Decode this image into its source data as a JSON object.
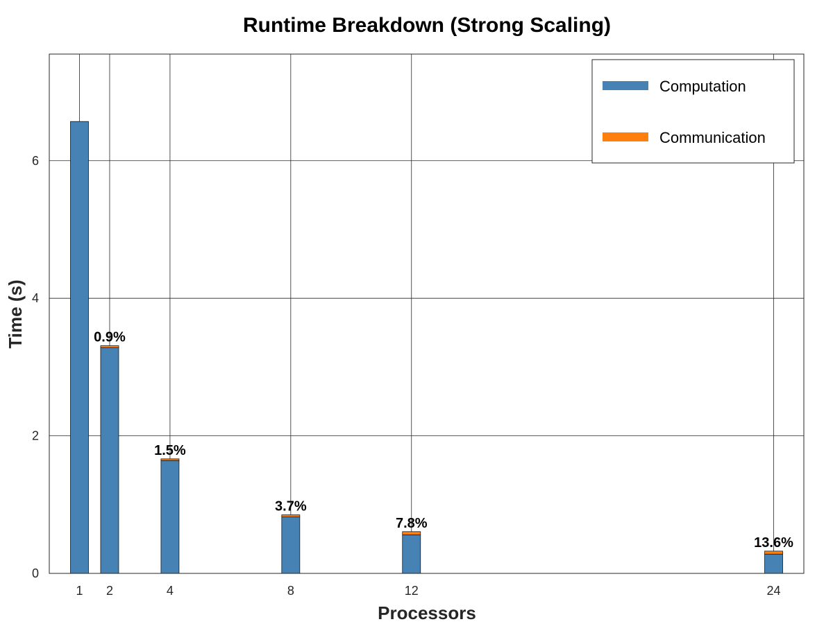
{
  "chart_data": {
    "type": "bar",
    "stacked": true,
    "title": "Runtime Breakdown (Strong Scaling)",
    "xlabel": "Processors",
    "ylabel": "Time (s)",
    "x": [
      1,
      2,
      4,
      8,
      12,
      24
    ],
    "x_tick_labels": [
      "1",
      "2",
      "4",
      "8",
      "12",
      "24"
    ],
    "xlim": [
      0,
      25
    ],
    "ylim": [
      0,
      7.55
    ],
    "y_ticks": [
      0,
      2,
      4,
      6
    ],
    "y_tick_labels": [
      "0",
      "2",
      "4",
      "6"
    ],
    "grid": true,
    "legend_position": "top-right",
    "series": [
      {
        "name": "Computation",
        "color": "#4682b4",
        "values": [
          6.57,
          3.28,
          1.64,
          0.82,
          0.56,
          0.28
        ]
      },
      {
        "name": "Communication",
        "color": "#ff7f0e",
        "values": [
          0.0,
          0.03,
          0.025,
          0.031,
          0.047,
          0.044
        ]
      }
    ],
    "data_labels": [
      "",
      "0.9%",
      "1.5%",
      "3.7%",
      "7.8%",
      "13.6%"
    ]
  }
}
